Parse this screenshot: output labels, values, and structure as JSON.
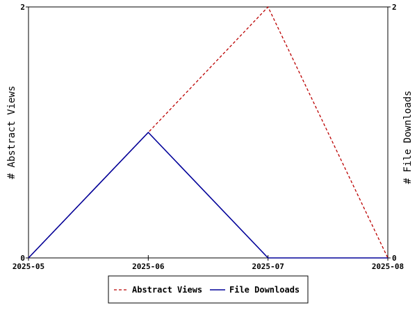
{
  "chart_data": {
    "type": "line",
    "x": [
      "2025-05",
      "2025-06",
      "2025-07",
      "2025-08"
    ],
    "series": [
      {
        "name": "Abstract Views",
        "values": [
          0,
          1,
          2,
          0
        ],
        "color": "#bb0000",
        "style": "dashed",
        "axis": "left"
      },
      {
        "name": "File Downloads",
        "values": [
          0,
          1,
          0,
          0
        ],
        "color": "#000099",
        "style": "solid",
        "axis": "right"
      }
    ],
    "ylabel_left": "# Abstract Views",
    "ylabel_right": "# File Downloads",
    "ylim_left": [
      0,
      2
    ],
    "ylim_right": [
      0,
      2
    ],
    "yticks_left": [
      "0",
      "2"
    ],
    "yticks_right": [
      "0",
      "2"
    ],
    "grid": false,
    "legend_position": "bottom-center"
  }
}
